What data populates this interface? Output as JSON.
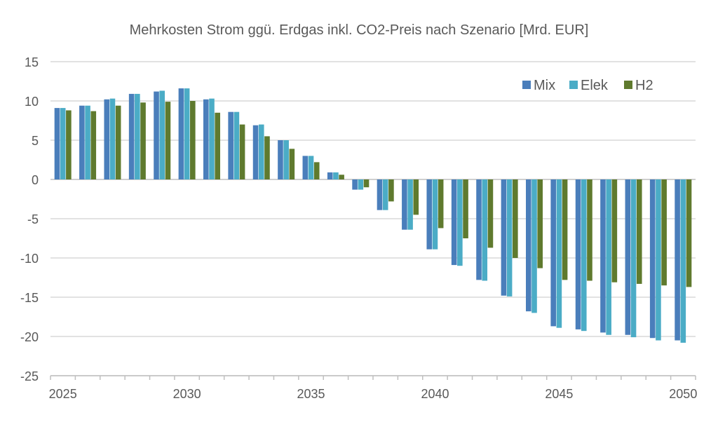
{
  "chart_data": {
    "type": "bar",
    "title": "Mehrkosten Strom ggü. Erdgas inkl. CO2-Preis nach Szenario  [Mrd. EUR]",
    "xlabel": "",
    "ylabel": "",
    "ylim": [
      -25,
      15
    ],
    "yticks": [
      "15",
      "10",
      "5",
      "0",
      "-5",
      "-10",
      "-15",
      "-20",
      "-25"
    ],
    "xtick_labels": [
      "2025",
      "2030",
      "2035",
      "2040",
      "2045",
      "2050"
    ],
    "categories": [
      2025,
      2026,
      2027,
      2028,
      2029,
      2030,
      2031,
      2032,
      2033,
      2034,
      2035,
      2036,
      2037,
      2038,
      2039,
      2040,
      2041,
      2042,
      2043,
      2044,
      2045,
      2046,
      2047,
      2048,
      2049,
      2050
    ],
    "series": [
      {
        "name": "Mix",
        "color": "#4a7ebb",
        "values": [
          9.1,
          9.4,
          10.2,
          10.9,
          11.2,
          11.6,
          10.2,
          8.6,
          6.9,
          5.0,
          3.0,
          0.9,
          -1.3,
          -3.9,
          -6.4,
          -8.9,
          -10.9,
          -12.8,
          -14.8,
          -16.8,
          -18.7,
          -19.1,
          -19.5,
          -19.8,
          -20.2,
          -20.5
        ]
      },
      {
        "name": "Elek",
        "color": "#4bacc6",
        "values": [
          9.1,
          9.4,
          10.3,
          10.9,
          11.3,
          11.6,
          10.3,
          8.6,
          7.0,
          5.0,
          3.0,
          0.9,
          -1.3,
          -3.9,
          -6.4,
          -8.9,
          -11.0,
          -12.9,
          -14.9,
          -17.0,
          -18.9,
          -19.3,
          -19.8,
          -20.1,
          -20.5,
          -20.8
        ]
      },
      {
        "name": "H2",
        "color": "#5f7a2e",
        "values": [
          8.8,
          8.7,
          9.4,
          9.8,
          9.9,
          10.0,
          8.5,
          7.0,
          5.5,
          3.9,
          2.2,
          0.6,
          -1.0,
          -2.8,
          -4.5,
          -6.2,
          -7.5,
          -8.7,
          -10.0,
          -11.3,
          -12.8,
          -12.9,
          -13.1,
          -13.3,
          -13.5,
          -13.7
        ]
      }
    ],
    "grid": true,
    "legend_position": "top-right"
  }
}
